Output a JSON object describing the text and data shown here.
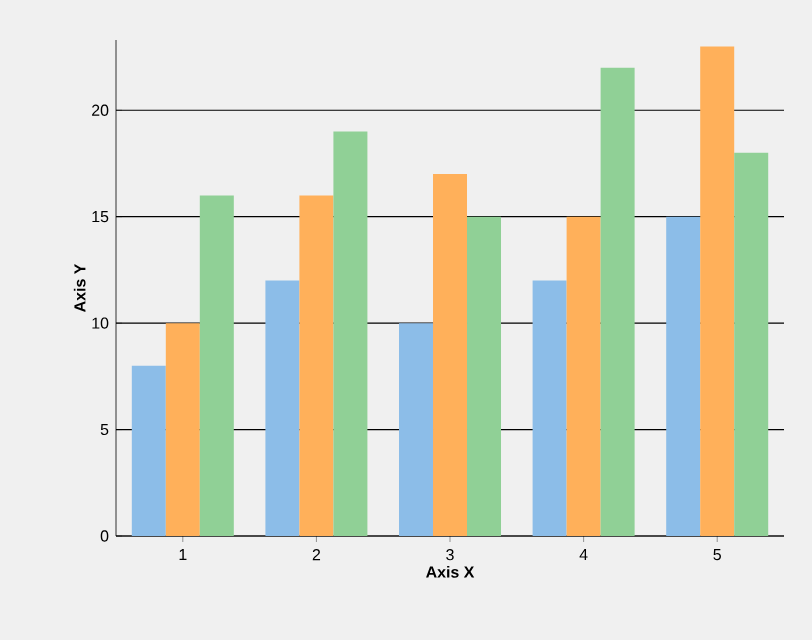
{
  "chart_data": {
    "type": "bar",
    "xlabel": "Axis X",
    "ylabel": "Axis Y",
    "categories": [
      "1",
      "2",
      "3",
      "4",
      "5"
    ],
    "series": [
      {
        "color": "#8cbde8",
        "values": [
          8,
          12,
          10,
          12,
          15
        ]
      },
      {
        "color": "#ffb05a",
        "values": [
          10,
          16,
          17,
          15,
          23
        ]
      },
      {
        "color": "#90d096",
        "values": [
          16,
          19,
          15,
          22,
          18
        ]
      }
    ],
    "ylim": [
      0,
      23.3
    ],
    "yticks": [
      0,
      5,
      10,
      15,
      20
    ],
    "grid": "y"
  }
}
